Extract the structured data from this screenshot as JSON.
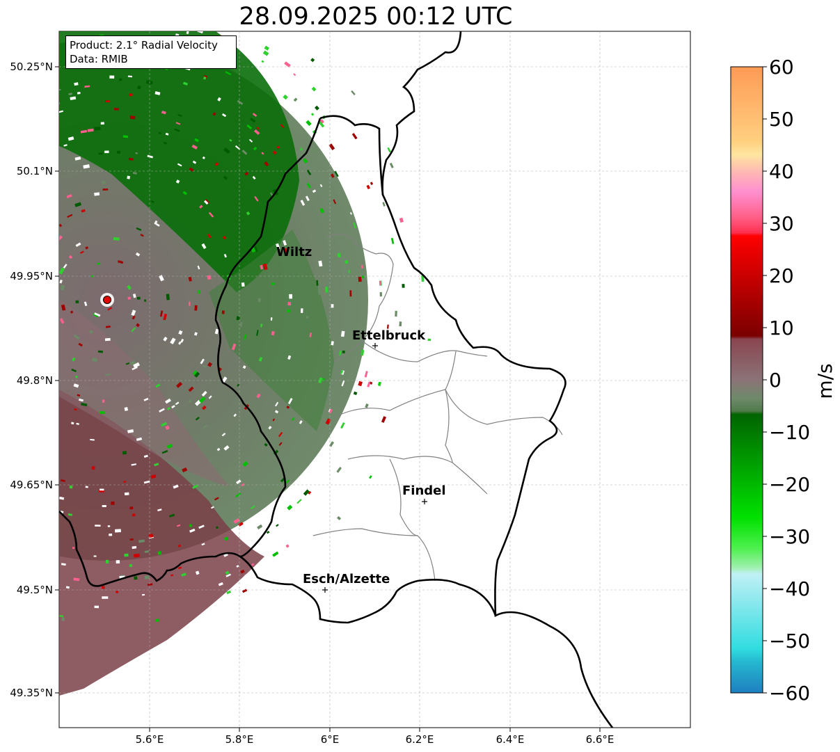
{
  "title": "28.09.2025 00:12 UTC",
  "info": {
    "product": "Product: 2.1° Radial Velocity",
    "data": "Data: RMIB"
  },
  "axes": {
    "lat_ticks": [
      "50.25°N",
      "50.1°N",
      "49.95°N",
      "49.8°N",
      "49.65°N",
      "49.5°N",
      "49.35°N"
    ],
    "lon_ticks": [
      "5.6°E",
      "5.8°E",
      "6°E",
      "6.2°E",
      "6.4°E",
      "6.6°E"
    ]
  },
  "colorbar": {
    "label": "m/s",
    "ticks": [
      "60",
      "50",
      "40",
      "30",
      "20",
      "10",
      "0",
      "−10",
      "−20",
      "−30",
      "−40",
      "−50",
      "−60"
    ],
    "range": [
      -60,
      60
    ]
  },
  "cities": [
    {
      "name": "Wiltz",
      "lat": 49.97,
      "lon": 5.93
    },
    {
      "name": "Ettelbruck",
      "lat": 49.85,
      "lon": 6.1
    },
    {
      "name": "Findel",
      "lat": 49.63,
      "lon": 6.21
    },
    {
      "name": "Esch/Alzette",
      "lat": 49.5,
      "lon": 5.99
    }
  ],
  "radar_site": {
    "lat": 49.915,
    "lon": 5.505
  },
  "colors": {
    "approach_strong": "#007000",
    "approach_mid": "#3aa53a",
    "approach_weak": "#6b8b66",
    "recede_weak": "#8a6f74",
    "recede_strong": "#7c3b41",
    "site_marker": "#e00000"
  }
}
